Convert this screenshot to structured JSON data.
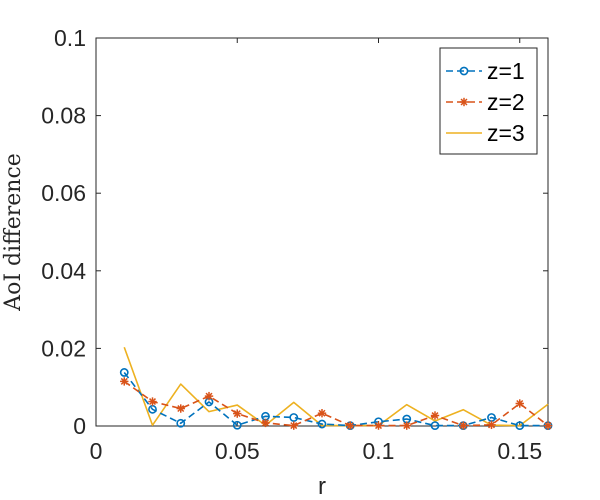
{
  "chart_data": {
    "type": "line",
    "title": "",
    "xlabel": "r",
    "ylabel": "AoI difference",
    "xlim": [
      0,
      0.16
    ],
    "ylim": [
      0,
      0.1
    ],
    "xticks": [
      "0",
      "0.05",
      "0.1",
      "0.15"
    ],
    "yticks": [
      "0",
      "0.02",
      "0.04",
      "0.06",
      "0.08",
      "0.1"
    ],
    "xtick_values": [
      0,
      0.05,
      0.1,
      0.15
    ],
    "ytick_values": [
      0,
      0.02,
      0.04,
      0.06,
      0.08,
      0.1
    ],
    "grid": false,
    "legend_position": "top-right",
    "x": [
      0.01,
      0.02,
      0.03,
      0.04,
      0.05,
      0.06,
      0.07,
      0.08,
      0.09,
      0.1,
      0.11,
      0.12,
      0.13,
      0.14,
      0.15,
      0.16
    ],
    "series": [
      {
        "name": "z=1",
        "color": "#0072BD",
        "marker": "circle",
        "linestyle": "dashed",
        "values": [
          0.0138,
          0.0043,
          0.0007,
          0.0062,
          0.0002,
          0.0025,
          0.0022,
          0.0005,
          0.0001,
          0.0011,
          0.0018,
          0.0001,
          0.0001,
          0.0022,
          0.0001,
          0.0001
        ]
      },
      {
        "name": "z=2",
        "color": "#D95319",
        "marker": "asterisk",
        "linestyle": "dashed",
        "values": [
          0.0115,
          0.0063,
          0.0045,
          0.0077,
          0.0032,
          0.0008,
          0.0001,
          0.0033,
          0.0001,
          0.0001,
          0.0001,
          0.0027,
          0.0001,
          0.0003,
          0.0058,
          0.0001
        ]
      },
      {
        "name": "z=3",
        "color": "#EDB120",
        "marker": "none",
        "linestyle": "solid",
        "values": [
          0.0203,
          0.0002,
          0.0108,
          0.0037,
          0.0054,
          0.0002,
          0.0061,
          0.0001,
          0.0001,
          0.0001,
          0.0055,
          0.0013,
          0.0042,
          0.0002,
          0.0001,
          0.0056
        ]
      }
    ]
  }
}
